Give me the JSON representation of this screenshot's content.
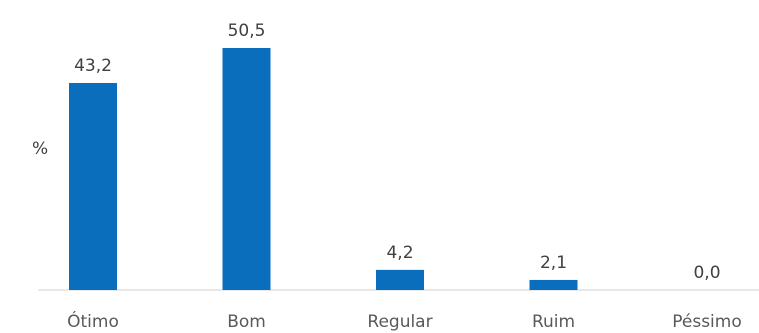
{
  "chart_data": {
    "type": "bar",
    "categories": [
      "Ótimo",
      "Bom",
      "Regular",
      "Ruim",
      "Péssimo"
    ],
    "values": [
      43.2,
      50.5,
      4.2,
      2.1,
      0.0
    ],
    "value_labels": [
      "43,2",
      "50,5",
      "4,2",
      "2,1",
      "0,0"
    ],
    "title": "",
    "xlabel": "",
    "ylabel": "%",
    "ylim": [
      0,
      50.5
    ],
    "grid": false,
    "legend": "none",
    "bar_color": "#0a6ebd",
    "axis_color": "#d9d9d9",
    "label_color": "#404040",
    "tick_color": "#595959"
  }
}
